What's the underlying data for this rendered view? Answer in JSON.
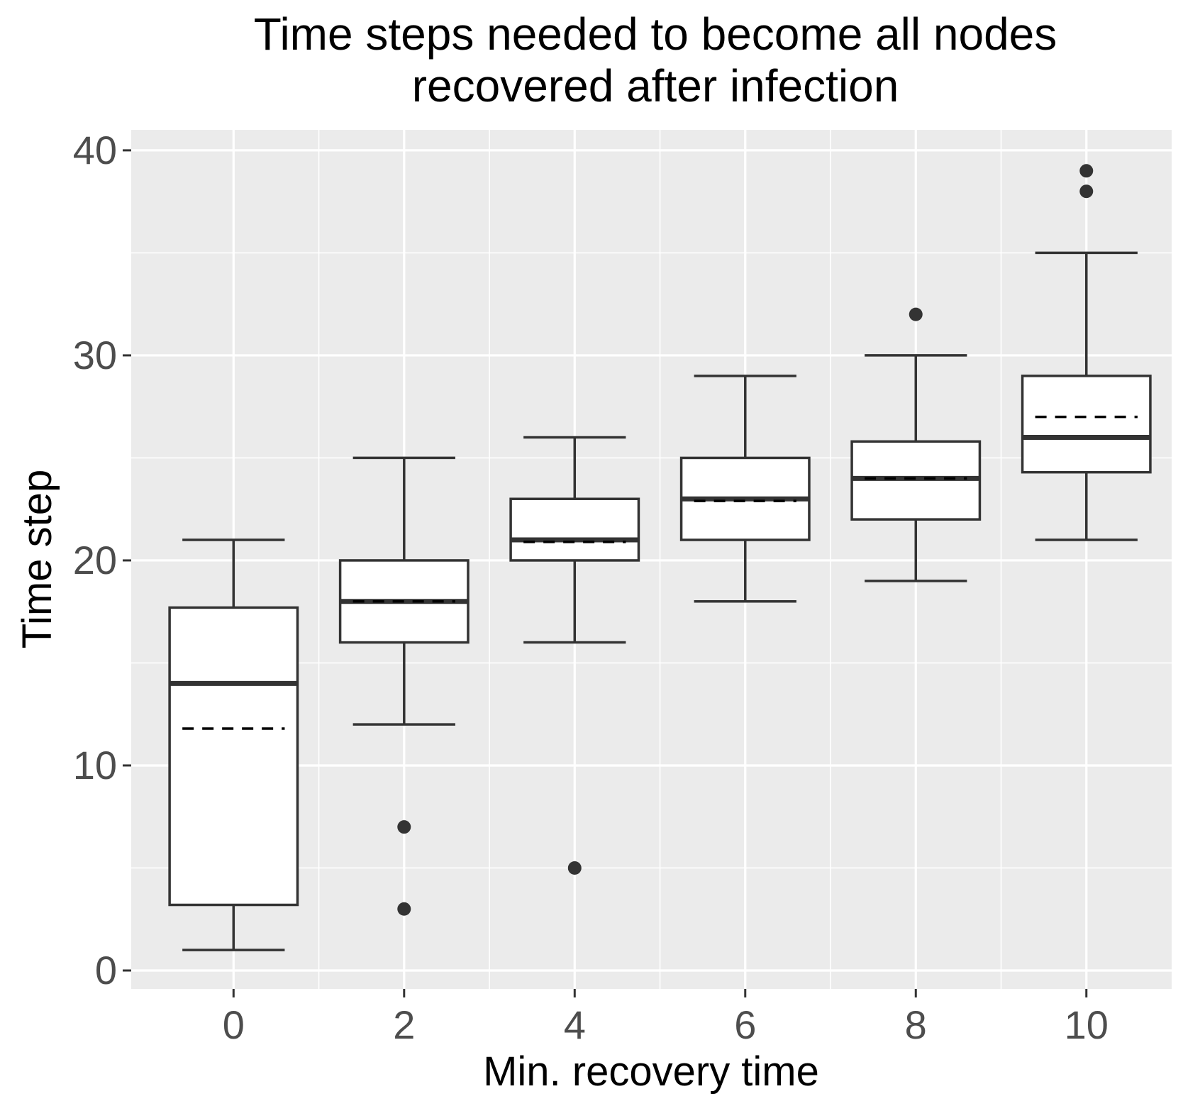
{
  "chart_data": {
    "type": "boxplot",
    "title_lines": [
      "Time steps needed to become all nodes",
      "recovered after infection"
    ],
    "xlabel": "Min. recovery time",
    "ylabel": "Time step",
    "xlim": [
      -1.2,
      11
    ],
    "ylim": [
      -0.9,
      41
    ],
    "x_ticks": [
      "0",
      "2",
      "4",
      "6",
      "8",
      "10"
    ],
    "y_ticks": [
      "0",
      "10",
      "20",
      "30",
      "40"
    ],
    "grid": true,
    "boxes": [
      {
        "x": 0,
        "whisker_low": 1,
        "q1": 3.2,
        "median": 14,
        "q3": 17.7,
        "whisker_high": 21,
        "mean": 11.8,
        "outliers": []
      },
      {
        "x": 2,
        "whisker_low": 12,
        "q1": 16,
        "median": 18,
        "q3": 20,
        "whisker_high": 25,
        "mean": 18,
        "outliers": [
          7,
          3
        ]
      },
      {
        "x": 4,
        "whisker_low": 16,
        "q1": 20,
        "median": 21,
        "q3": 23,
        "whisker_high": 26,
        "mean": 20.9,
        "outliers": [
          5
        ]
      },
      {
        "x": 6,
        "whisker_low": 18,
        "q1": 21,
        "median": 23,
        "q3": 25,
        "whisker_high": 29,
        "mean": 22.9,
        "outliers": []
      },
      {
        "x": 8,
        "whisker_low": 19,
        "q1": 22,
        "median": 24,
        "q3": 25.8,
        "whisker_high": 30,
        "mean": 24,
        "outliers": [
          32
        ]
      },
      {
        "x": 10,
        "whisker_low": 21,
        "q1": 24.3,
        "median": 26,
        "q3": 29,
        "whisker_high": 35,
        "mean": 27,
        "outliers": [
          39,
          38
        ]
      }
    ],
    "colors": {
      "panel": "#ebebeb",
      "grid": "#ffffff",
      "box_fill": "#ffffff",
      "stroke": "#333333",
      "mean_line": "#000000"
    }
  }
}
